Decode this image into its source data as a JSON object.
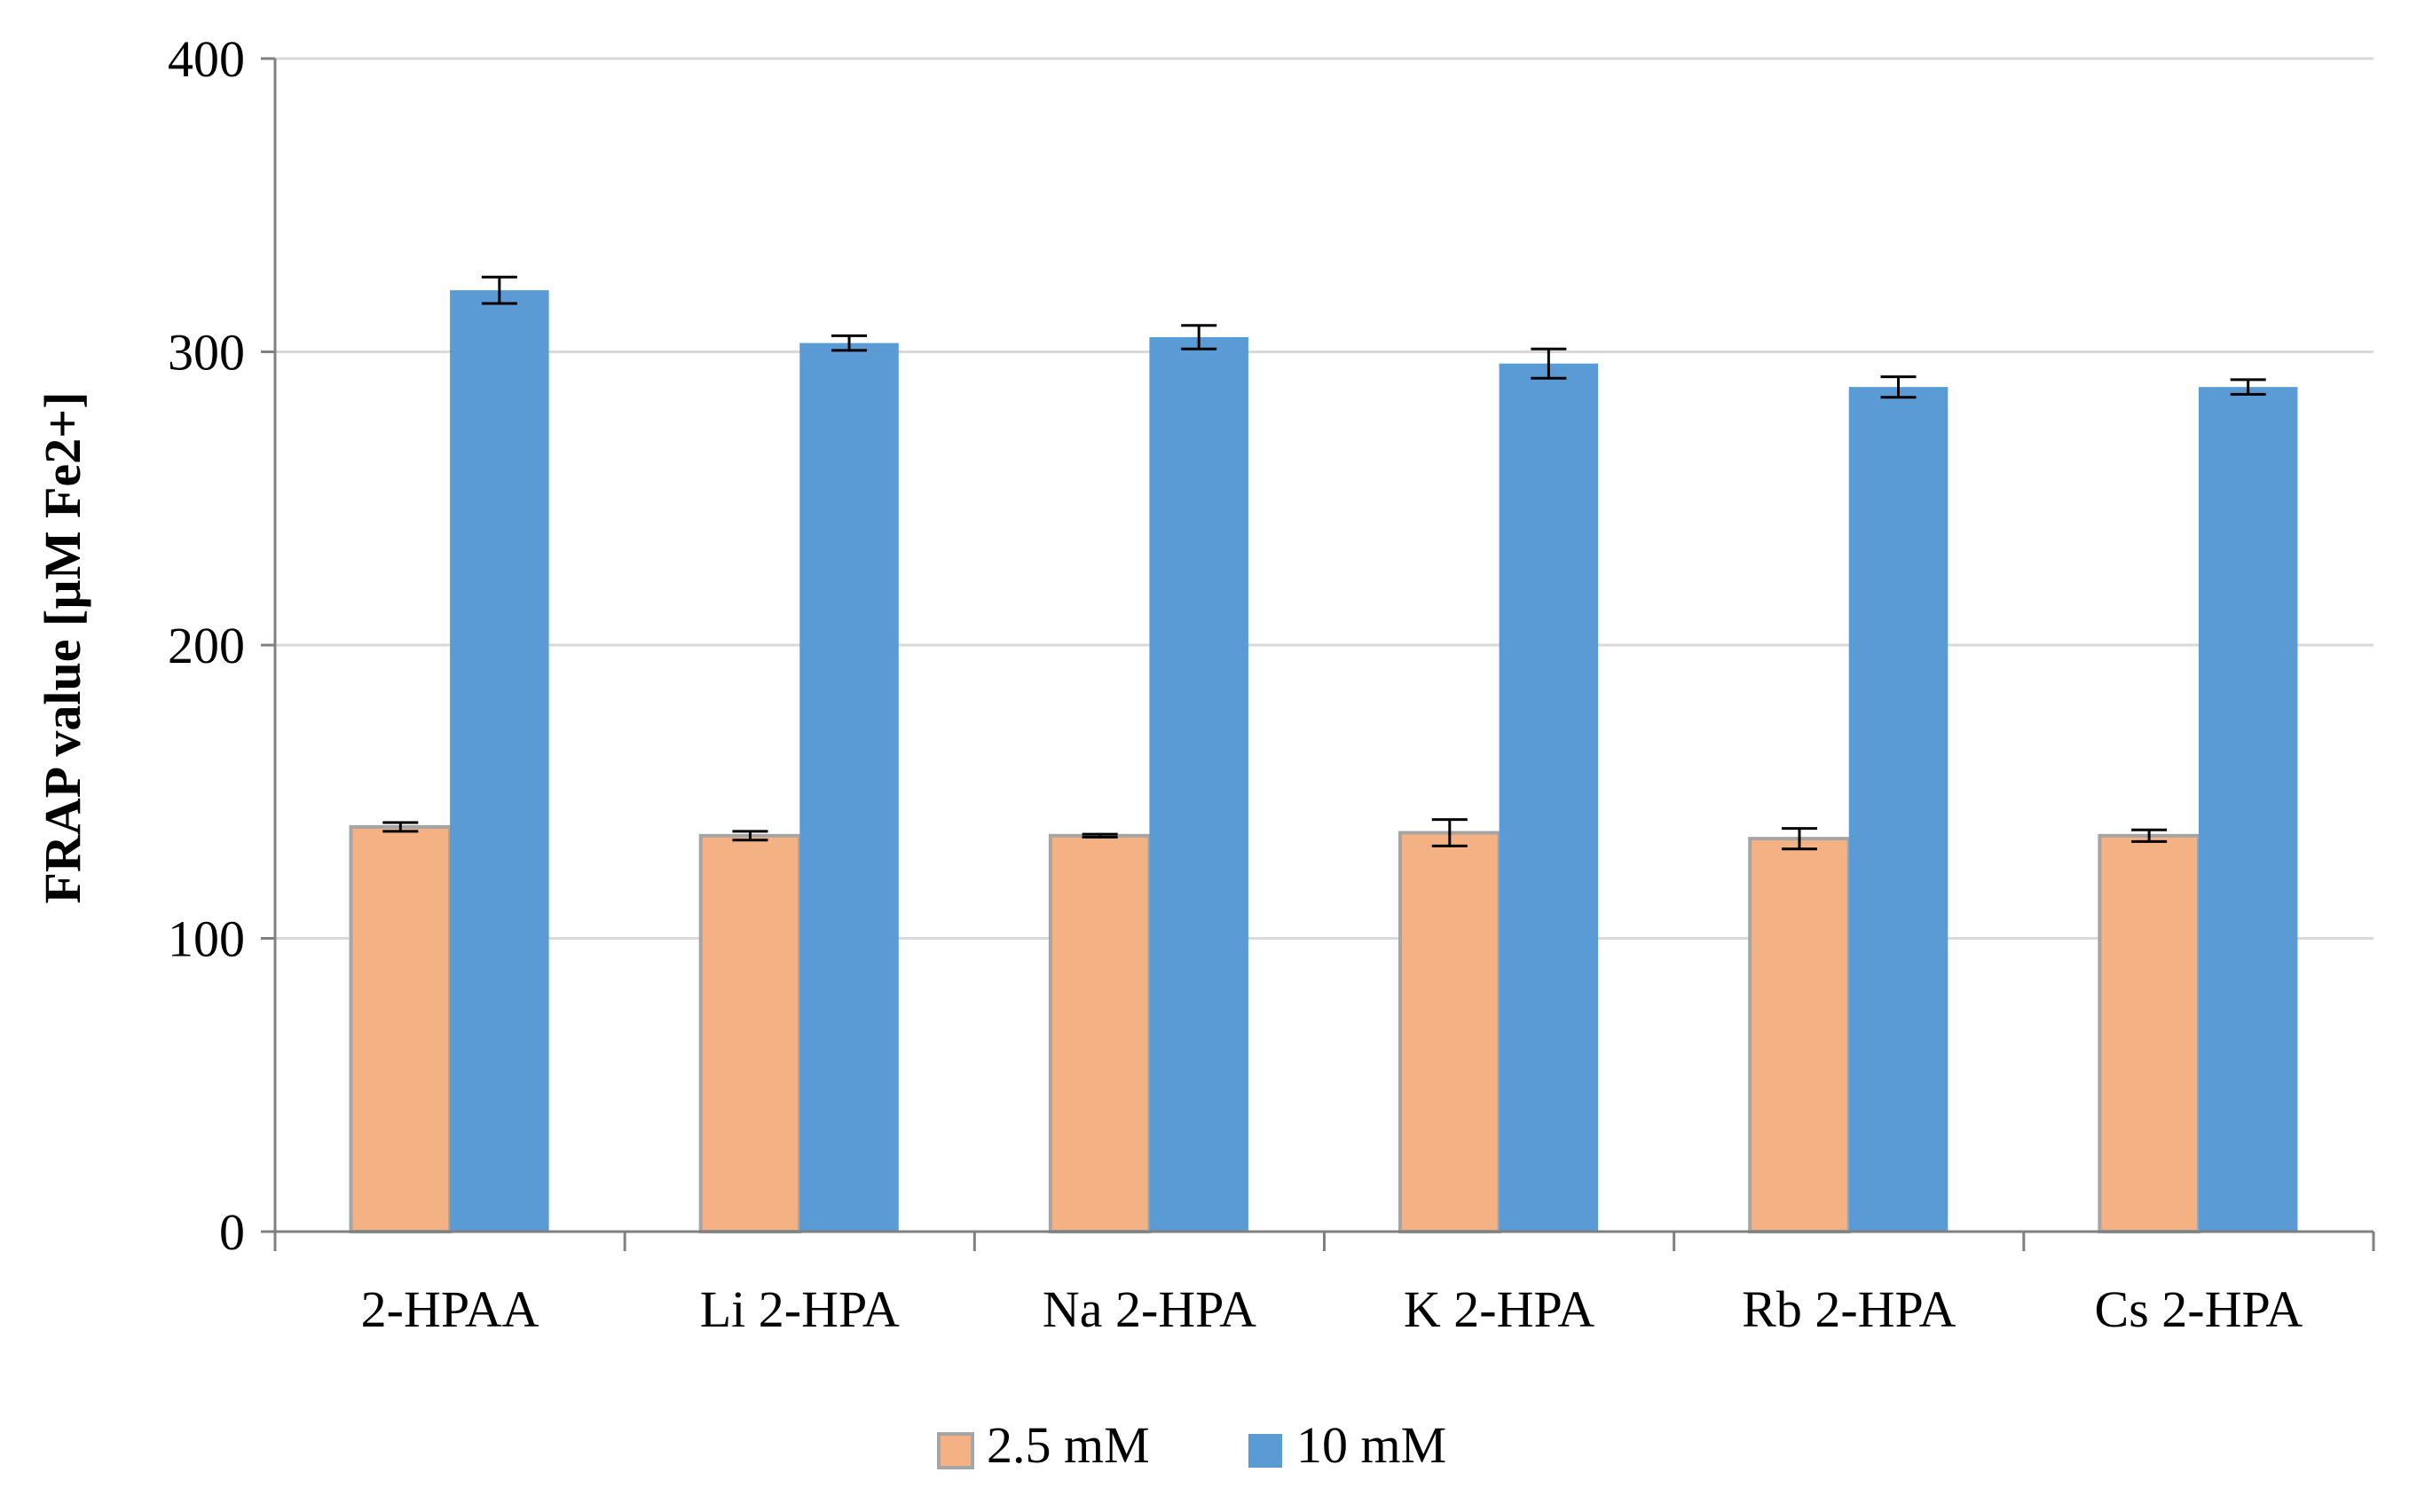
{
  "chart_data": {
    "type": "bar",
    "title": "",
    "xlabel": "",
    "ylabel": "FRAP value [µM Fe2+]",
    "ylim": [
      0,
      400
    ],
    "yticks": [
      0,
      100,
      200,
      300,
      400
    ],
    "grid": true,
    "legend_position": "bottom",
    "categories": [
      "2-HPAA",
      "Li 2-HPA",
      "Na 2-HPA",
      "K 2-HPA",
      "Rb 2-HPA",
      "Cs 2-HPA"
    ],
    "series": [
      {
        "name": "2.5 mM",
        "color": "#F4B183",
        "values": [
          138,
          135,
          135,
          136,
          134,
          135
        ],
        "errors": [
          1.5,
          1.5,
          0.5,
          4.5,
          3.5,
          2
        ]
      },
      {
        "name": "10 mM",
        "color": "#5B9BD5",
        "values": [
          321,
          303,
          305,
          296,
          288,
          288
        ],
        "errors": [
          4.5,
          2.5,
          4,
          5,
          3.5,
          2.5
        ]
      }
    ]
  }
}
